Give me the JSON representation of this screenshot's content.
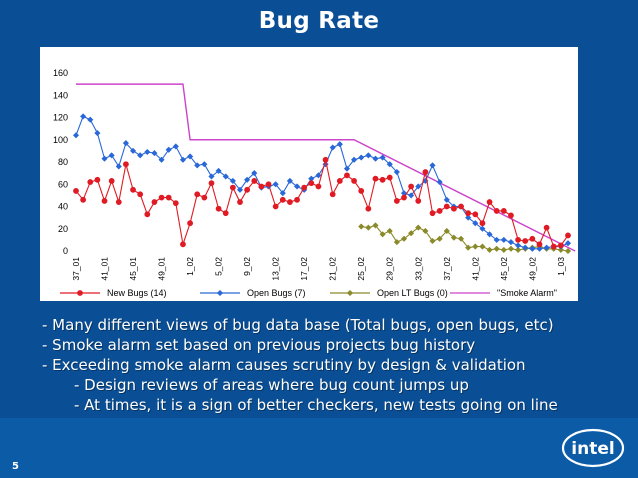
{
  "slide": {
    "title": "Bug Rate",
    "page_number": "5",
    "logo_text": "intel",
    "bullets": [
      {
        "text": "- Many different views of bug data base (Total bugs, open bugs, etc)",
        "level": 1
      },
      {
        "text": "- Smoke alarm set based on previous projects bug history",
        "level": 1
      },
      {
        "text": "- Exceeding smoke alarm causes scrutiny by design & validation",
        "level": 1
      },
      {
        "text": "- Design reviews of areas where bug count jumps up",
        "level": 2
      },
      {
        "text": "- At times, it is a sign of better checkers, new tests going on line",
        "level": 2
      }
    ]
  },
  "chart_data": {
    "type": "line",
    "title": "",
    "xlabel": "",
    "ylabel": "",
    "ylim": [
      0,
      160
    ],
    "yticks": [
      0,
      20,
      40,
      60,
      80,
      100,
      120,
      140,
      160
    ],
    "x_tick_labels": [
      "37_01",
      "41_01",
      "45_01",
      "49_01",
      "1_02",
      "5_02",
      "9_02",
      "13_02",
      "17_02",
      "21_02",
      "25_02",
      "29_02",
      "33_02",
      "37_02",
      "41_02",
      "45_02",
      "49_02",
      "1_03"
    ],
    "x_count": 70,
    "grid": false,
    "legend_position": "bottom",
    "series": [
      {
        "name": "New Bugs (14)",
        "color": "#e01b24",
        "marker": "circle",
        "values": [
          54,
          46,
          62,
          64,
          45,
          63,
          44,
          78,
          55,
          51,
          33,
          44,
          48,
          48,
          43,
          6,
          25,
          51,
          48,
          61,
          38,
          34,
          57,
          44,
          55,
          63,
          58,
          60,
          40,
          46,
          44,
          46,
          57,
          61,
          58,
          82,
          51,
          63,
          68,
          63,
          54,
          38,
          65,
          64,
          66,
          45,
          48,
          58,
          45,
          71,
          34,
          36,
          40,
          38,
          40,
          34,
          33,
          25,
          44,
          36,
          36,
          32,
          10,
          9,
          11,
          6,
          21,
          4,
          5,
          14
        ]
      },
      {
        "name": "Open Bugs (7)",
        "color": "#2a68d8",
        "marker": "diamond",
        "values": [
          104,
          121,
          118,
          106,
          83,
          86,
          76,
          97,
          90,
          86,
          89,
          88,
          82,
          91,
          94,
          82,
          85,
          77,
          78,
          67,
          72,
          67,
          63,
          55,
          64,
          70,
          57,
          58,
          60,
          52,
          63,
          58,
          55,
          65,
          68,
          78,
          93,
          96,
          74,
          82,
          84,
          86,
          83,
          84,
          78,
          71,
          52,
          50,
          58,
          63,
          77,
          62,
          46,
          40,
          40,
          30,
          25,
          20,
          15,
          10,
          10,
          8,
          5,
          3,
          2,
          2,
          3,
          4,
          4,
          7
        ]
      },
      {
        "name": "Open LT Bugs (0)",
        "color": "#8a8a2a",
        "marker": "diamond",
        "start_index": 40,
        "values": [
          22,
          21,
          23,
          15,
          18,
          8,
          11,
          16,
          21,
          18,
          9,
          11,
          18,
          12,
          11,
          3,
          4,
          4,
          1,
          2,
          1,
          2,
          1,
          2,
          3,
          4,
          2,
          2,
          1,
          0
        ]
      },
      {
        "name": "\"Smoke Alarm\"",
        "color": "#cc44cc",
        "marker": "none",
        "points": [
          [
            0,
            150
          ],
          [
            15,
            150
          ],
          [
            16,
            100
          ],
          [
            39,
            100
          ],
          [
            70,
            0
          ]
        ]
      }
    ]
  }
}
